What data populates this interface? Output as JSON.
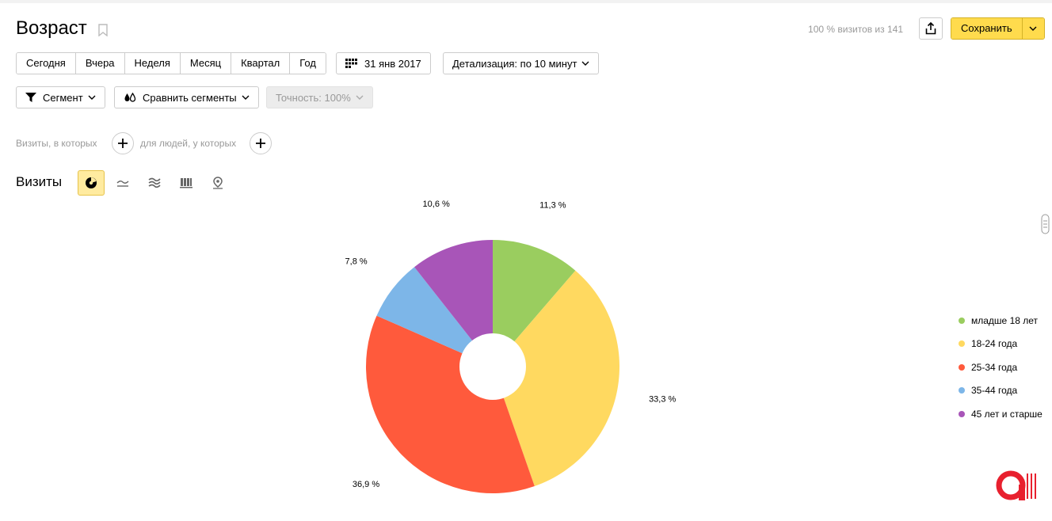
{
  "header": {
    "title": "Возраст",
    "visits_info": "100 % визитов из 141",
    "save_label": "Сохранить"
  },
  "periods": [
    "Сегодня",
    "Вчера",
    "Неделя",
    "Месяц",
    "Квартал",
    "Год"
  ],
  "date_label": "31 янв 2017",
  "detail_label": "Детализация: по 10 минут",
  "segment_label": "Сегмент",
  "compare_label": "Сравнить сегменты",
  "accuracy_label": "Точность: 100%",
  "filters": {
    "visits_text": "Визиты, в которых",
    "people_text": "для людей, у которых"
  },
  "section_title": "Визиты",
  "colors": {
    "accent": "#ffdb4d",
    "active_tab": "#ffeba0",
    "logo": "#e8202e"
  },
  "chart_data": {
    "type": "pie",
    "donut": true,
    "slices": [
      {
        "name": "младше 18 лет",
        "value": 11.3,
        "label": "11,3 %",
        "color": "#9acd5f"
      },
      {
        "name": "18-24 года",
        "value": 33.3,
        "label": "33,3 %",
        "color": "#ffd960"
      },
      {
        "name": "25-34 года",
        "value": 36.9,
        "label": "36,9 %",
        "color": "#ff5a3c"
      },
      {
        "name": "35-44 года",
        "value": 7.8,
        "label": "7,8 %",
        "color": "#7db6e8"
      },
      {
        "name": "45 лет и старше",
        "value": 10.6,
        "label": "10,6 %",
        "color": "#a855b8"
      }
    ],
    "legend_position": "right"
  }
}
